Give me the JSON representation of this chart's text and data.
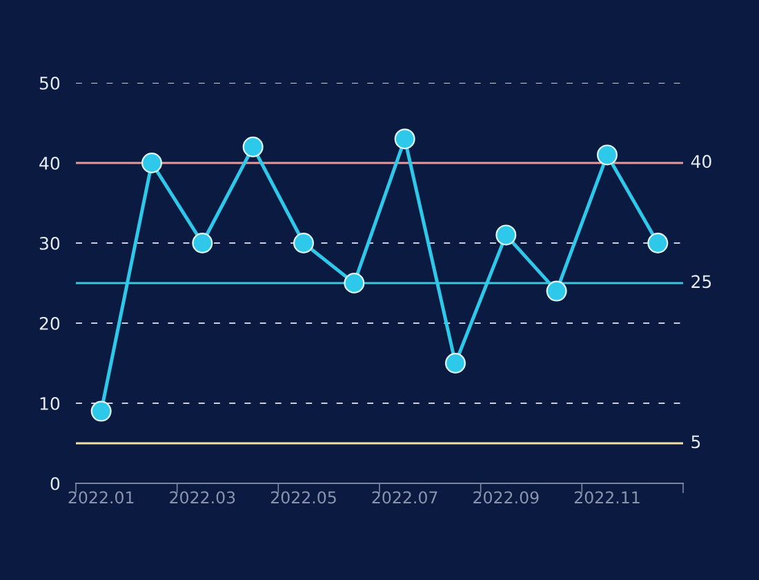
{
  "chart_data": {
    "type": "line",
    "categories": [
      "2022.01",
      null,
      "2022.03",
      null,
      "2022.05",
      null,
      "2022.07",
      null,
      "2022.09",
      null,
      "2022.11",
      null
    ],
    "series": [
      {
        "color": "#2ec8ea",
        "values": [
          9,
          40,
          30,
          42,
          30,
          25,
          43,
          15,
          31,
          24,
          41,
          30
        ]
      }
    ],
    "ylim": [
      0,
      50
    ],
    "yticks": [
      0,
      10,
      20,
      30,
      40,
      50
    ],
    "grid": "y",
    "marker": "circle",
    "line_style": "solid",
    "ref_lines": [
      {
        "axis": "y",
        "value": 40,
        "label": "40",
        "color": "#e89a9a"
      },
      {
        "axis": "y",
        "value": 25,
        "label": "25",
        "color": "#3fc4dc"
      },
      {
        "axis": "y",
        "value": 5,
        "label": "5",
        "color": "#f2e2a8"
      }
    ]
  }
}
